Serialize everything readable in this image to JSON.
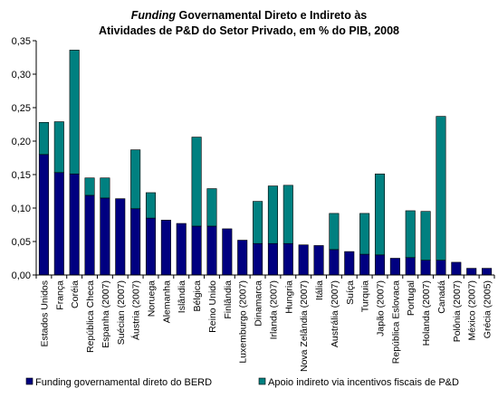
{
  "chart_data": {
    "type": "bar",
    "stacked": true,
    "title_emphasis": "Funding",
    "title_line1_rest": " Governamental Direto e Indireto às",
    "title_line2": "Atividades de P&D do Setor Privado, em % do PIB, 2008",
    "xlabel": "",
    "ylabel": "",
    "ylim": [
      0,
      0.35
    ],
    "yticks": [
      "0,00",
      "0,05",
      "0,10",
      "0,15",
      "0,20",
      "0,25",
      "0,30",
      "0,35"
    ],
    "grid": false,
    "legend_position": "bottom",
    "categories": [
      "Estados Unidos",
      "França",
      "Coréia",
      "República Checa",
      "Espanha (2007)",
      "Suécian (2007)",
      "Áustria (2007)",
      "Noruega",
      "Alemanha",
      "Islândia",
      "Bélgica",
      "Reino Unido",
      "Finlândia",
      "Luxemburgo (2007)",
      "Dinamarca",
      "Irlanda (2007)",
      "Hungria",
      "Nova Zelândia (2007)",
      "Itália",
      "Austrália (2007)",
      "Suíça",
      "Turquia",
      "Japão (2007)",
      "República Eslovaca",
      "Portugal",
      "Holanda (2007)",
      "Canadá",
      "Polônia (2007)",
      "México (2007)",
      "Grécia (2005)"
    ],
    "series": [
      {
        "name": "Funding governamental direto do BERD",
        "color": "#000080",
        "values": [
          0.18,
          0.153,
          0.151,
          0.119,
          0.115,
          0.114,
          0.099,
          0.085,
          0.082,
          0.077,
          0.073,
          0.073,
          0.069,
          0.052,
          0.047,
          0.047,
          0.047,
          0.045,
          0.044,
          0.038,
          0.035,
          0.031,
          0.03,
          0.025,
          0.026,
          0.022,
          0.022,
          0.019,
          0.01,
          0.01
        ]
      },
      {
        "name": "Apoio indireto via incentivos fiscais de P&D",
        "color": "#008080",
        "values": [
          0.048,
          0.076,
          0.185,
          0.026,
          0.03,
          0.0,
          0.088,
          0.038,
          0.0,
          0.0,
          0.133,
          0.056,
          0.0,
          0.0,
          0.063,
          0.086,
          0.087,
          0.0,
          0.0,
          0.054,
          0.0,
          0.061,
          0.121,
          0.0,
          0.07,
          0.073,
          0.215,
          0.0,
          0.0,
          0.0
        ]
      }
    ]
  }
}
